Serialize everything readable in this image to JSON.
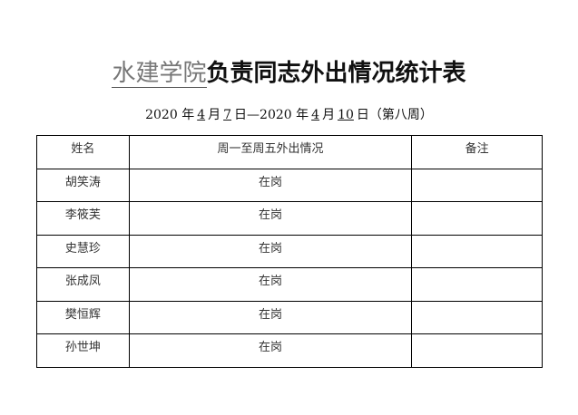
{
  "title": {
    "org": "水建学院",
    "rest": "负责同志外出情况统计表"
  },
  "subtitle": {
    "y1": "2020",
    "t1": "年",
    "m1": "4",
    "t2": "月",
    "d1": "7",
    "t3": "日—",
    "y2": "2020",
    "t4": "年",
    "m2": "4",
    "t5": "月",
    "d2": "10",
    "t6": "日（第八周）"
  },
  "table": {
    "headers": [
      "姓名",
      "周一至周五外出情况",
      "备注"
    ],
    "rows": [
      {
        "name": "胡笑涛",
        "status": "在岗",
        "note": ""
      },
      {
        "name": "李筱芙",
        "status": "在岗",
        "note": ""
      },
      {
        "name": "史慧珍",
        "status": "在岗",
        "note": ""
      },
      {
        "name": "张成凤",
        "status": "在岗",
        "note": ""
      },
      {
        "name": "樊恒辉",
        "status": "在岗",
        "note": ""
      },
      {
        "name": "孙世坤",
        "status": "在岗",
        "note": ""
      }
    ]
  }
}
